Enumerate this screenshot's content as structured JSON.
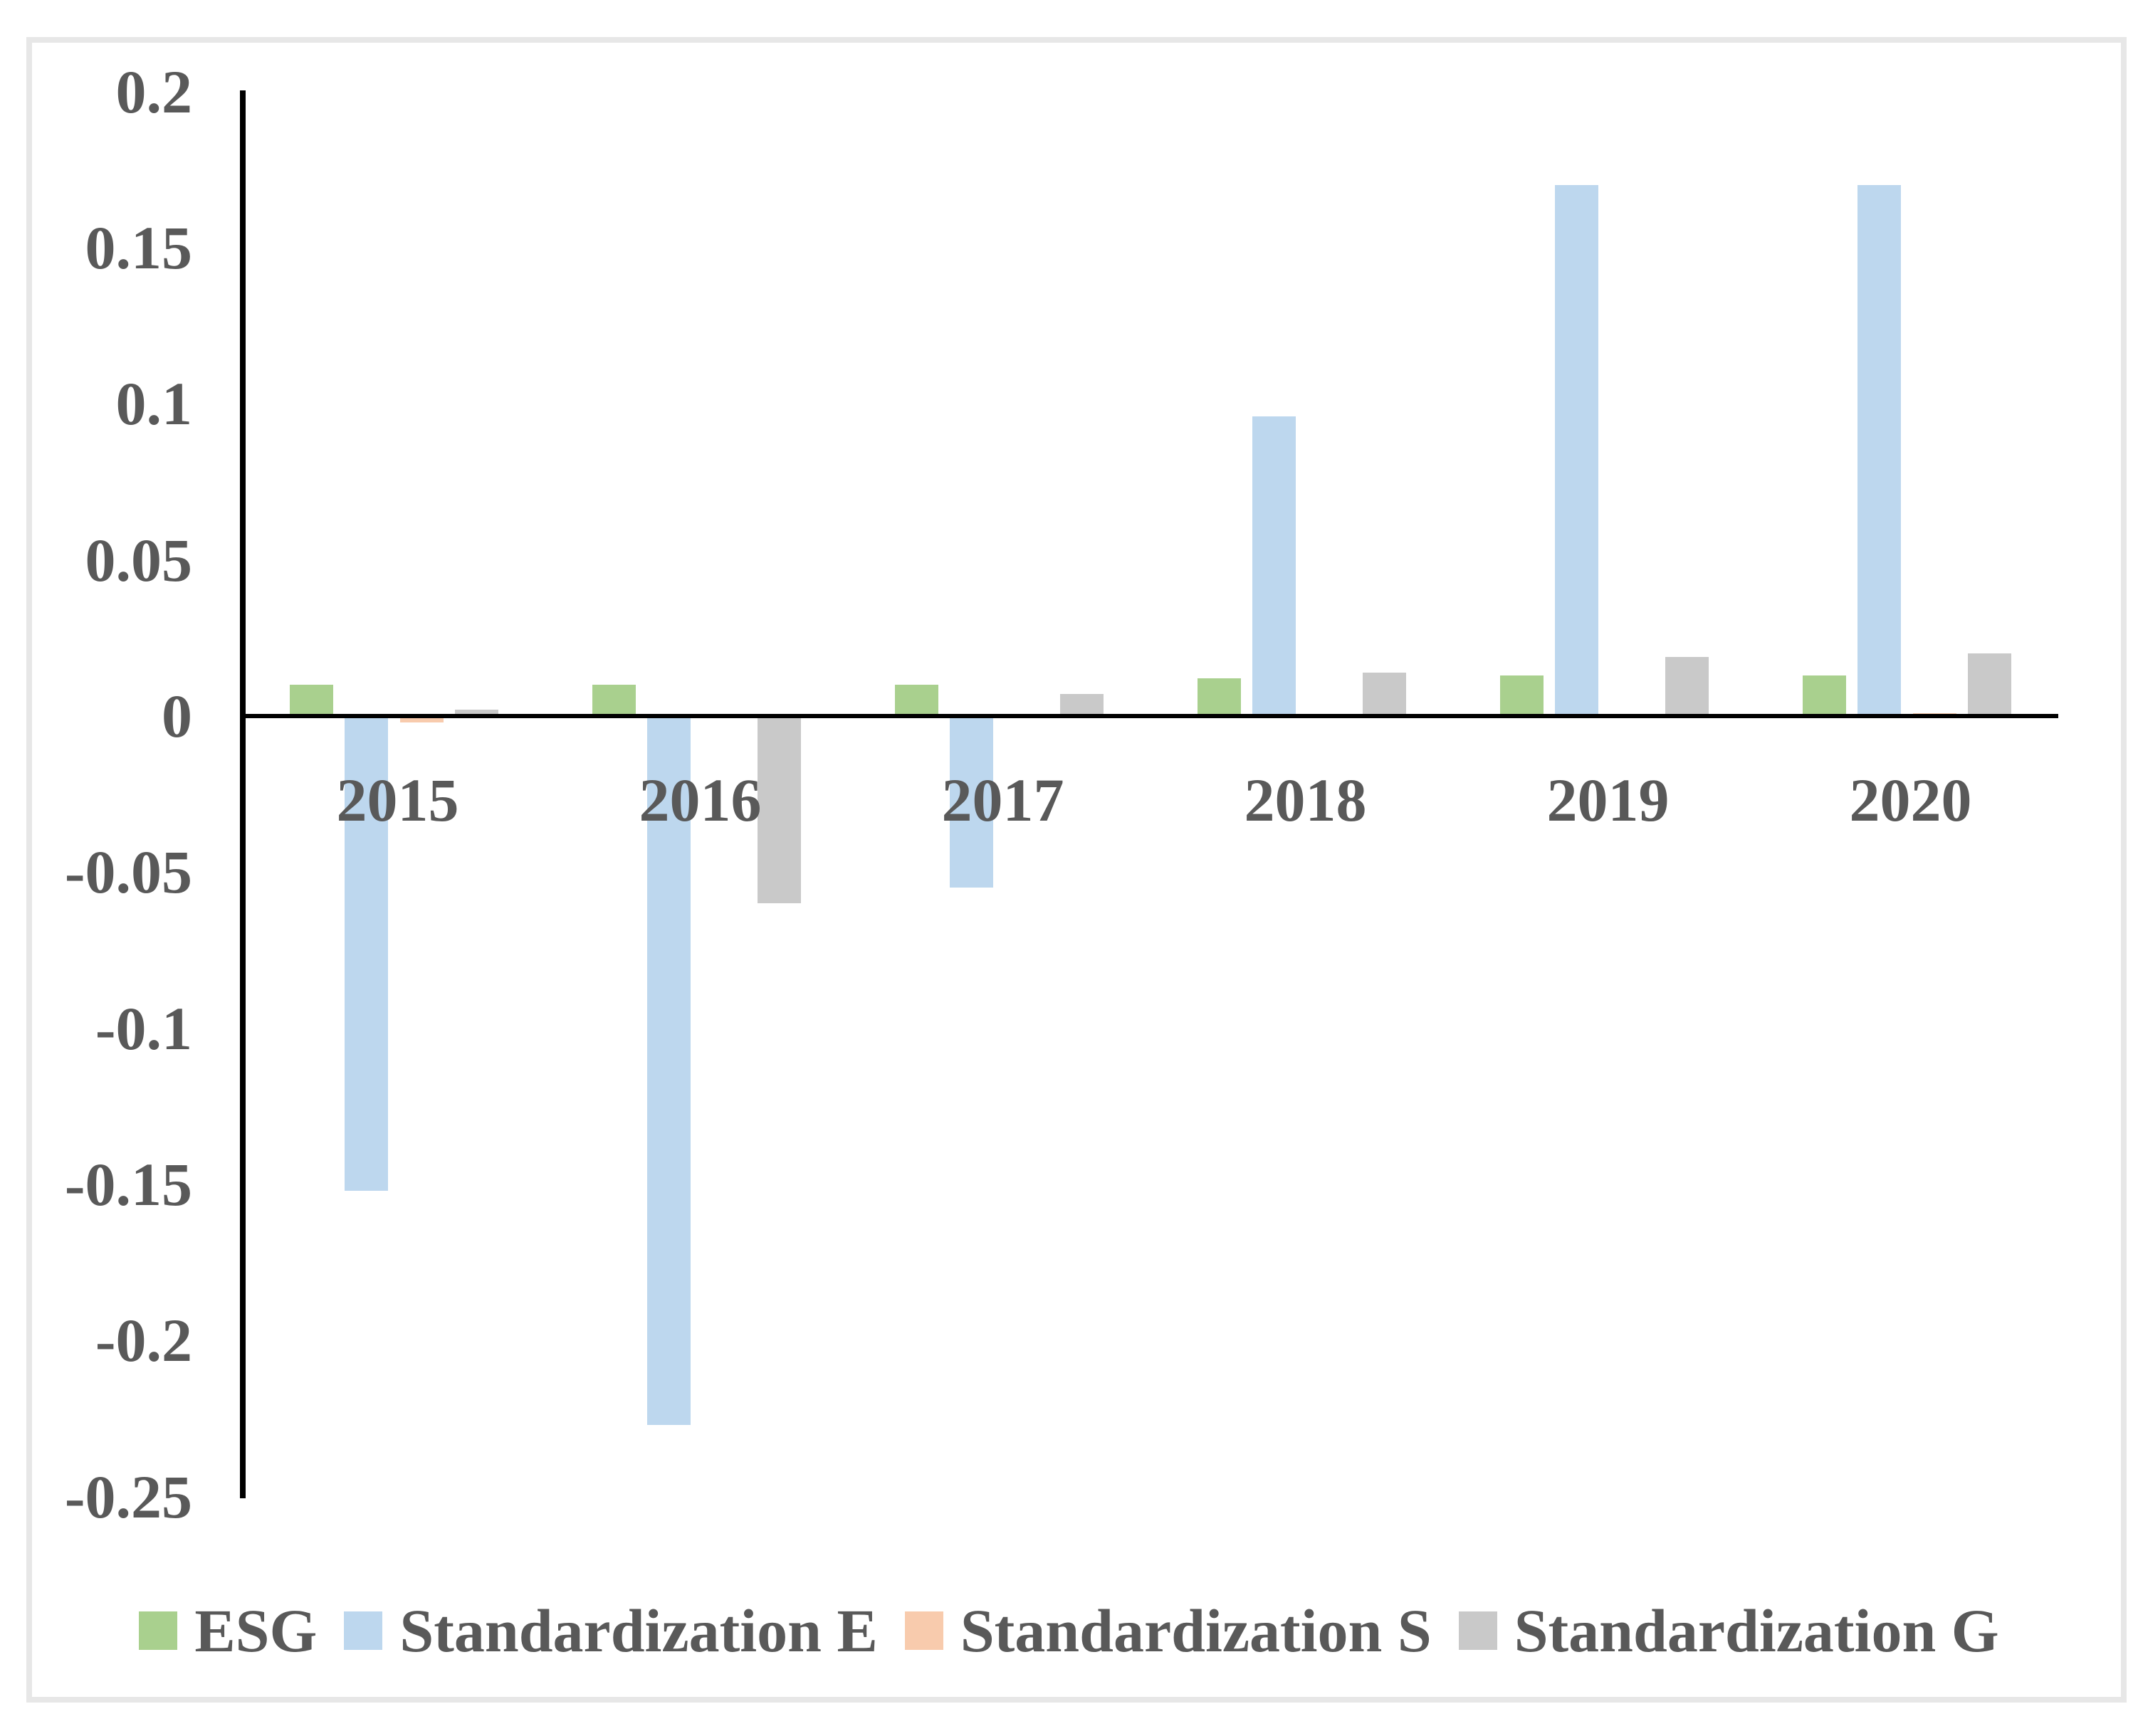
{
  "chart_data": {
    "type": "bar",
    "title": "",
    "xlabel": "",
    "ylabel": "",
    "categories": [
      "2015",
      "2016",
      "2017",
      "2018",
      "2019",
      "2020"
    ],
    "series": [
      {
        "name": "ESG",
        "color": "#A9D08E",
        "values": [
          0.01,
          0.01,
          0.01,
          0.012,
          0.013,
          0.013
        ]
      },
      {
        "name": "Standardization E",
        "color": "#BDD7EE",
        "values": [
          -0.152,
          -0.227,
          -0.055,
          0.096,
          0.17,
          0.17
        ]
      },
      {
        "name": "Standardization S",
        "color": "#F8CBAD",
        "values": [
          -0.002,
          0.0,
          0.0,
          0.0,
          0.0,
          0.001
        ]
      },
      {
        "name": "Standardization G",
        "color": "#C9C9C9",
        "values": [
          0.002,
          -0.06,
          0.007,
          0.014,
          0.019,
          0.02
        ]
      }
    ],
    "ylim": [
      -0.25,
      0.2
    ],
    "ytick_step": 0.05,
    "ytick_labels": [
      "0.2",
      "0.15",
      "0.1",
      "0.05",
      "0",
      "-0.05",
      "-0.1",
      "-0.15",
      "-0.2",
      "-0.25"
    ],
    "grid": false,
    "legend_position": "bottom",
    "colors": {
      "axis_line": "#000000",
      "label_text": "#595959",
      "frame_border": "#E7E7E7",
      "background": "#FFFFFF"
    }
  }
}
